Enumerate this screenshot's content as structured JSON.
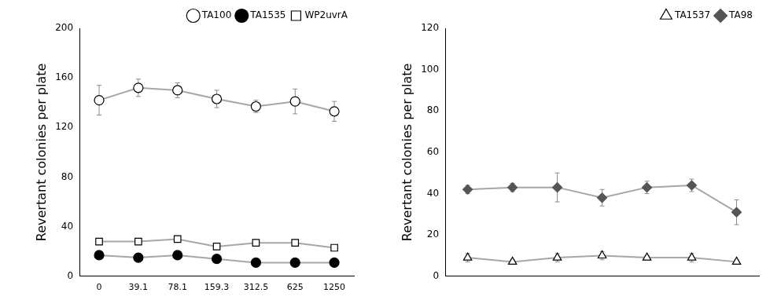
{
  "chart_data": [
    {
      "type": "line",
      "categories": [
        "0",
        "39.1",
        "78.1",
        "159.3",
        "312.5",
        "625",
        "1250"
      ],
      "ylabel": "Revertant colonies per plate",
      "ylim": [
        0,
        200
      ],
      "yticks": [
        0,
        40,
        80,
        120,
        160,
        200
      ],
      "grid": false,
      "legend": "upper right",
      "series": [
        {
          "name": "TA100",
          "color": "#000000",
          "marker": "circle-open",
          "values": [
            142,
            152,
            150,
            143,
            137,
            141,
            133
          ],
          "errors": [
            12,
            7,
            6,
            7,
            5,
            10,
            8
          ]
        },
        {
          "name": "TA1535",
          "color": "#000000",
          "marker": "circle",
          "values": [
            17,
            15,
            17,
            14,
            11,
            11,
            11
          ],
          "errors": [
            2,
            2,
            2,
            2,
            1,
            1,
            1
          ]
        },
        {
          "name": "WP2uvrA",
          "color": "#000000",
          "marker": "square-open",
          "values": [
            28,
            28,
            30,
            24,
            27,
            27,
            23
          ],
          "errors": [
            2,
            2,
            2,
            2,
            2,
            2,
            2
          ]
        }
      ]
    },
    {
      "type": "line",
      "categories": [
        null,
        null,
        null,
        null,
        null,
        null,
        null
      ],
      "ylabel": "Revertant colonies per plate",
      "ylim": [
        0,
        120
      ],
      "yticks": [
        0,
        20,
        40,
        60,
        80,
        100,
        120
      ],
      "grid": false,
      "legend": "upper right",
      "tick_labels": "y",
      "series": [
        {
          "name": "TA1537",
          "color": "#000000",
          "marker": "triangle-open",
          "values": [
            9,
            7,
            9,
            10,
            9,
            9,
            7
          ],
          "errors": [
            2,
            1,
            2,
            2,
            1,
            2,
            1
          ]
        },
        {
          "name": "TA98",
          "color": "#555555",
          "marker": "diamond",
          "values": [
            42,
            43,
            43,
            38,
            43,
            44,
            31
          ],
          "errors": [
            2,
            2,
            7,
            4,
            3,
            3,
            6
          ]
        }
      ]
    }
  ]
}
